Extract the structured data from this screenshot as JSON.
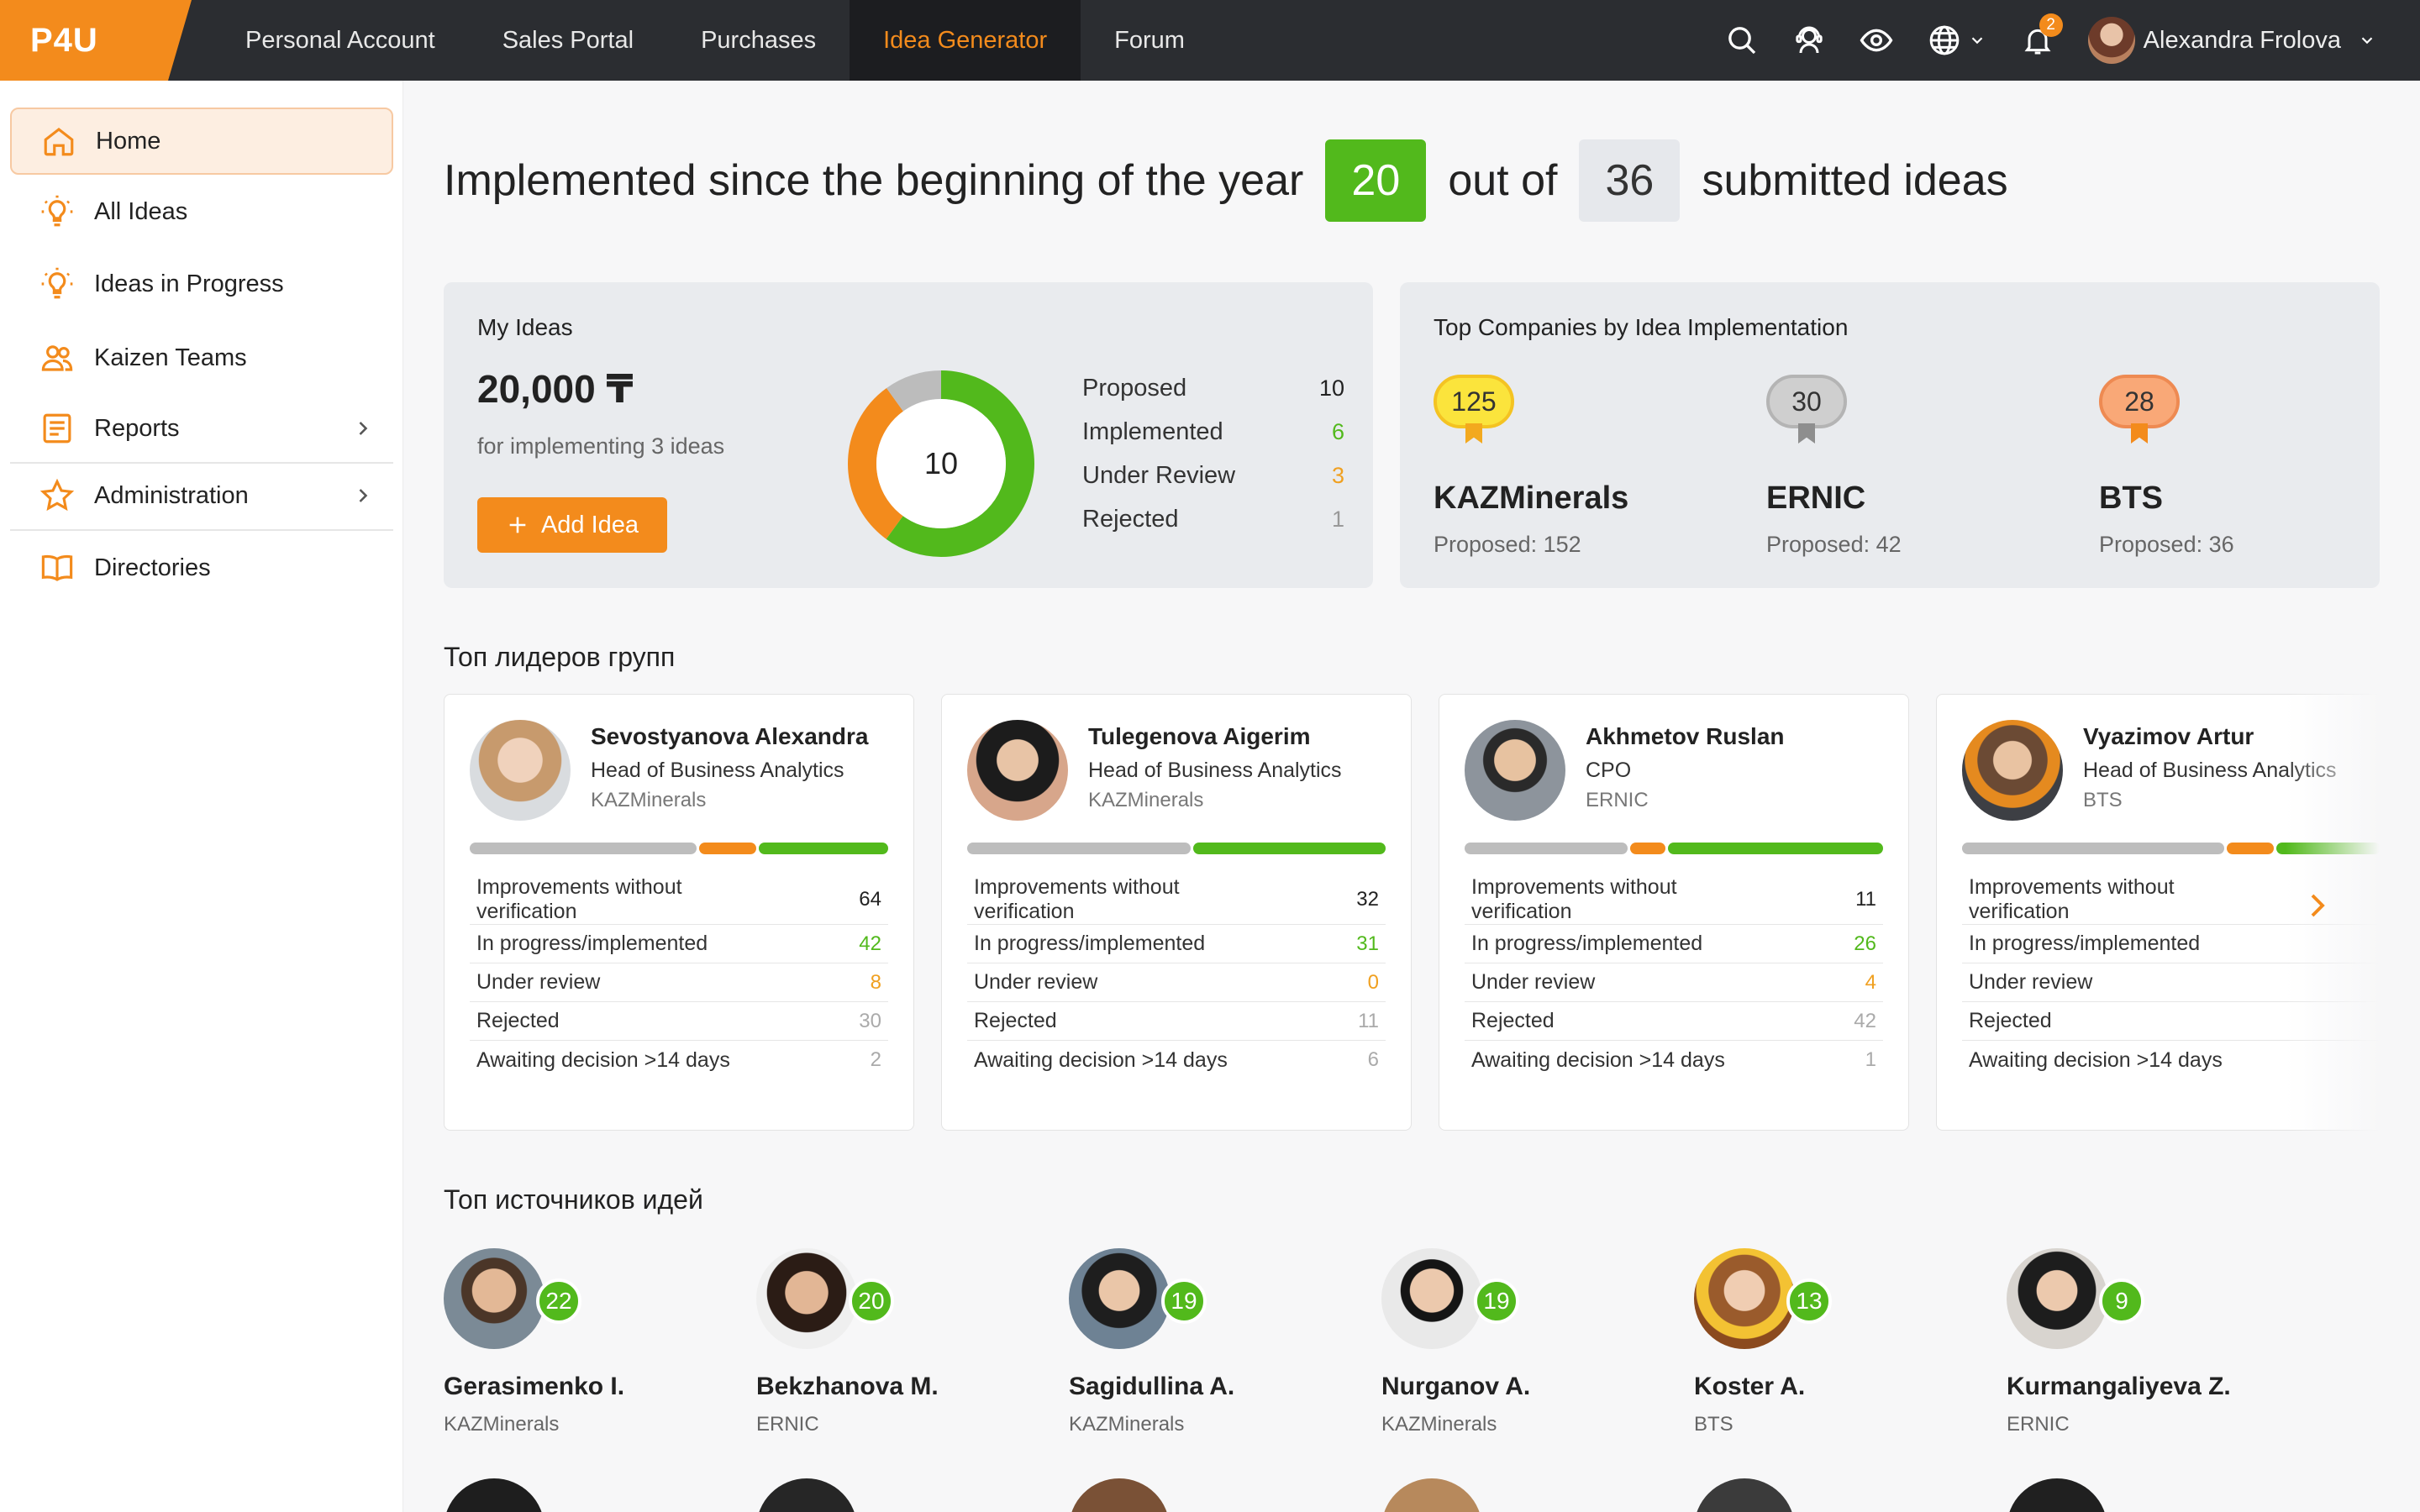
{
  "brand": {
    "logo": "P4U",
    "accent": "#f38b1c",
    "green": "#52b91c",
    "dark": "#2b2d31"
  },
  "nav": {
    "items": [
      "Personal Account",
      "Sales Portal",
      "Purchases",
      "Idea Generator",
      "Forum"
    ],
    "active": "Idea Generator"
  },
  "topbar": {
    "icons": [
      "search-icon",
      "support-agent-icon",
      "eye-icon",
      "globe-icon",
      "bell-icon"
    ],
    "notifications": "2",
    "user_name": "Alexandra Frolova"
  },
  "sidebar": {
    "items": [
      {
        "label": "Home",
        "icon": "home-icon"
      },
      {
        "label": "All Ideas",
        "icon": "lightbulb-icon"
      },
      {
        "label": "Ideas in Progress",
        "icon": "lightbulb-icon"
      },
      {
        "label": "Kaizen Teams",
        "icon": "team-icon"
      },
      {
        "label": "Reports",
        "icon": "report-icon"
      },
      {
        "label": "Administration",
        "icon": "star-icon"
      },
      {
        "label": "Directories",
        "icon": "book-icon"
      }
    ]
  },
  "headline": {
    "prefix": "Implemented since the beginning of the year",
    "implemented": "20",
    "middle": "out of",
    "submitted": "36",
    "suffix": "submitted ideas"
  },
  "my_ideas": {
    "title": "My Ideas",
    "amount": "20,000 ₸",
    "amount_sub": "for implementing 3 ideas",
    "add_button": "Add Idea",
    "total": "10",
    "stats": [
      {
        "label": "Proposed",
        "value": "10",
        "color": "#222222"
      },
      {
        "label": "Implemented",
        "value": "6",
        "color": "#52b91c"
      },
      {
        "label": "Under Review",
        "value": "3",
        "color": "#f0a020"
      },
      {
        "label": "Rejected",
        "value": "1",
        "color": "#999999"
      }
    ]
  },
  "top_companies": {
    "title": "Top Companies by Idea Implementation",
    "items": [
      {
        "rank_value": "125",
        "name": "KAZMinerals",
        "proposed": "Proposed: 152",
        "medal": "gold"
      },
      {
        "rank_value": "30",
        "name": "ERNIC",
        "proposed": "Proposed: 42",
        "medal": "silver"
      },
      {
        "rank_value": "28",
        "name": "BTS",
        "proposed": "Proposed: 36",
        "medal": "bronze"
      }
    ]
  },
  "leaders": {
    "title": "Топ лидеров групп",
    "row_labels": [
      "Improvements without verification",
      "In progress/implemented",
      "Under review",
      "Rejected",
      "Awaiting decision >14 days"
    ],
    "cards": [
      {
        "name": "Sevostyanova Alexandra",
        "role": "Head of Business Analytics",
        "company": "KAZMinerals",
        "values": [
          "64",
          "42",
          "8",
          "30",
          "2"
        ]
      },
      {
        "name": "Tulegenova Aigerim",
        "role": "Head of Business Analytics",
        "company": "KAZMinerals",
        "values": [
          "32",
          "31",
          "0",
          "11",
          "6"
        ]
      },
      {
        "name": "Akhmetov Ruslan",
        "role": "CPO",
        "company": "ERNIC",
        "values": [
          "11",
          "26",
          "4",
          "42",
          "1"
        ]
      },
      {
        "name": "Vyazimov Artur",
        "role": "Head of Business Analytics",
        "company": "BTS",
        "values": [
          "",
          "",
          "",
          "",
          ""
        ]
      }
    ]
  },
  "sources": {
    "title": "Топ источников идей",
    "items": [
      {
        "name": "Gerasimenko I.",
        "company": "KAZMinerals",
        "count": "22"
      },
      {
        "name": "Bekzhanova M.",
        "company": "ERNIC",
        "count": "20"
      },
      {
        "name": "Sagidullina A.",
        "company": "KAZMinerals",
        "count": "19"
      },
      {
        "name": "Nurganov A.",
        "company": "KAZMinerals",
        "count": "19"
      },
      {
        "name": "Koster A.",
        "company": "BTS",
        "count": "13"
      },
      {
        "name": "Kurmangaliyeva Z.",
        "company": "ERNIC",
        "count": "9"
      }
    ]
  }
}
